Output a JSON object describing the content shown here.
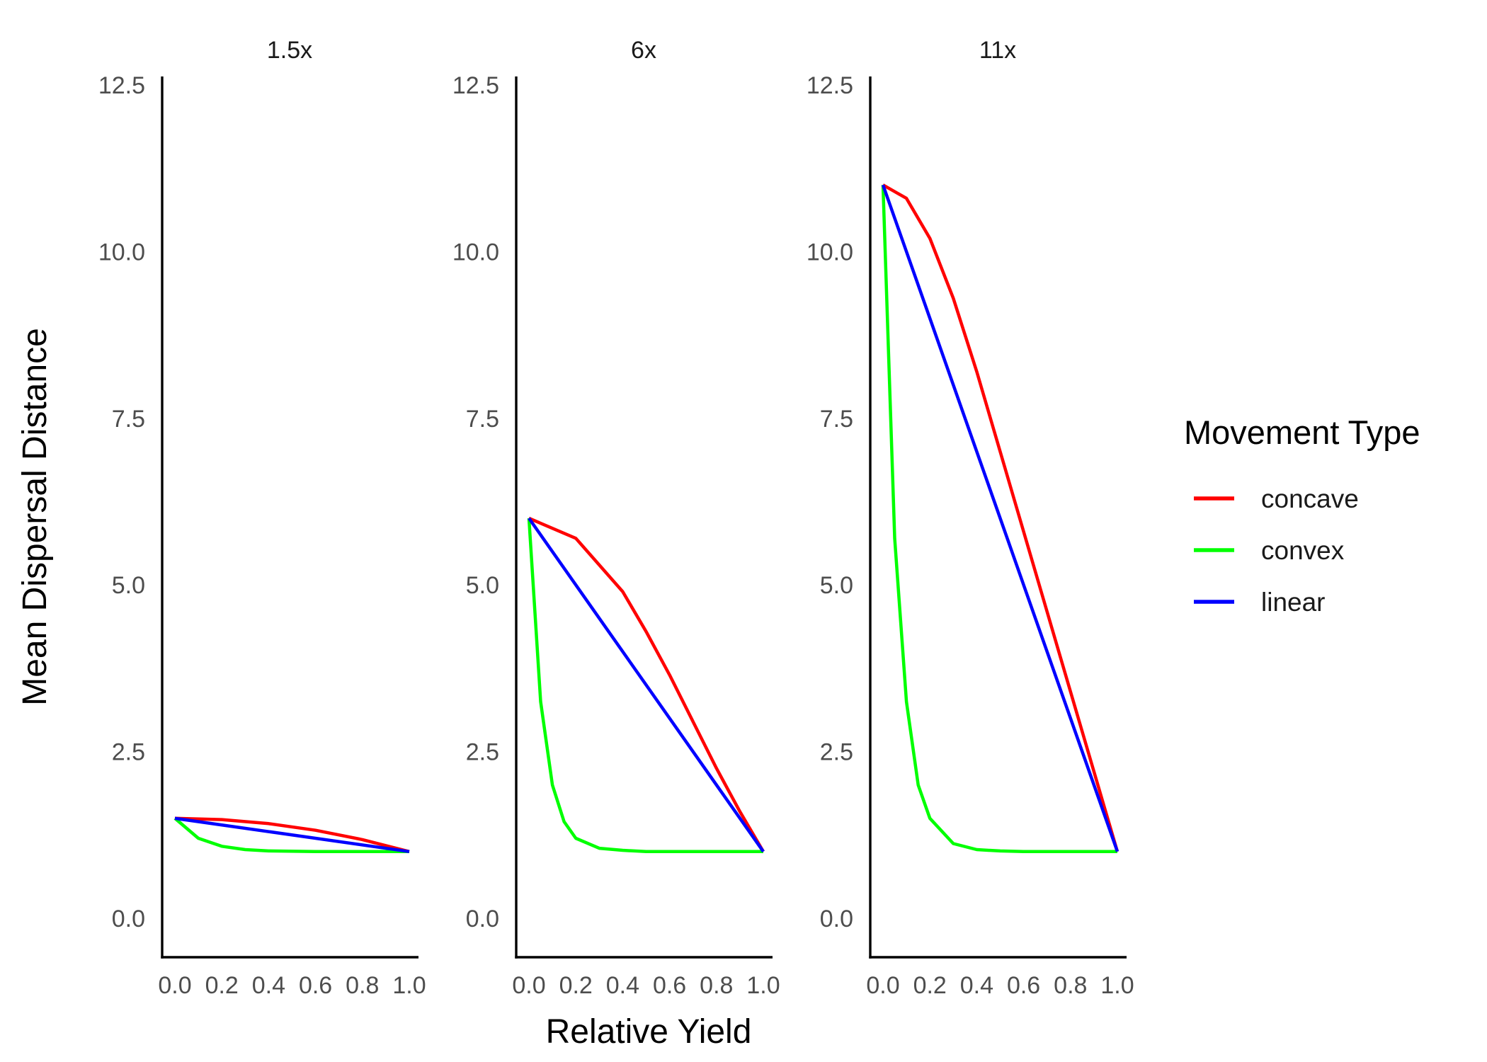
{
  "chart_data": {
    "type": "line",
    "xlabel": "Relative Yield",
    "ylabel": "Mean Dispersal Distance",
    "xlim": [
      0.0,
      1.0
    ],
    "ylim": [
      0.0,
      12.5
    ],
    "x_tick_labels": [
      "0.0",
      "0.2",
      "0.4",
      "0.6",
      "0.8",
      "1.0"
    ],
    "y_tick_labels": [
      "0.0",
      "2.5",
      "5.0",
      "7.5",
      "10.0",
      "12.5"
    ],
    "grid": false,
    "legend": {
      "title": "Movement Type",
      "placement": "right",
      "entries": [
        "concave",
        "convex",
        "linear"
      ]
    },
    "series_colors": {
      "concave": "#ff0000",
      "convex": "#00ff00",
      "linear": "#0000ff"
    },
    "facets": [
      {
        "title": "1.5x",
        "series": [
          {
            "name": "concave",
            "x": [
              0.0,
              0.2,
              0.4,
              0.6,
              0.8,
              1.0
            ],
            "y": [
              1.5,
              1.48,
              1.42,
              1.32,
              1.18,
              1.0
            ]
          },
          {
            "name": "convex",
            "x": [
              0.0,
              0.1,
              0.2,
              0.3,
              0.4,
              0.6,
              0.8,
              1.0
            ],
            "y": [
              1.5,
              1.2,
              1.08,
              1.03,
              1.01,
              1.0,
              1.0,
              1.0
            ]
          },
          {
            "name": "linear",
            "x": [
              0.0,
              1.0
            ],
            "y": [
              1.5,
              1.0
            ]
          }
        ]
      },
      {
        "title": "6x",
        "series": [
          {
            "name": "concave",
            "x": [
              0.0,
              0.2,
              0.4,
              0.5,
              0.6,
              0.7,
              0.8,
              0.9,
              1.0
            ],
            "y": [
              6.0,
              5.7,
              4.9,
              4.3,
              3.65,
              2.95,
              2.25,
              1.6,
              1.0
            ]
          },
          {
            "name": "convex",
            "x": [
              0.0,
              0.05,
              0.1,
              0.15,
              0.2,
              0.3,
              0.4,
              0.5,
              0.6,
              0.8,
              1.0
            ],
            "y": [
              6.0,
              3.25,
              2.0,
              1.45,
              1.2,
              1.05,
              1.02,
              1.0,
              1.0,
              1.0,
              1.0
            ]
          },
          {
            "name": "linear",
            "x": [
              0.0,
              1.0
            ],
            "y": [
              6.0,
              1.0
            ]
          }
        ]
      },
      {
        "title": "11x",
        "series": [
          {
            "name": "concave",
            "x": [
              0.0,
              0.1,
              0.2,
              0.3,
              0.4,
              0.5,
              0.6,
              0.7,
              0.8,
              0.9,
              1.0
            ],
            "y": [
              11.0,
              10.8,
              10.2,
              9.3,
              8.2,
              7.0,
              5.8,
              4.6,
              3.4,
              2.2,
              1.0
            ]
          },
          {
            "name": "convex",
            "x": [
              0.0,
              0.05,
              0.1,
              0.15,
              0.2,
              0.3,
              0.4,
              0.5,
              0.6,
              0.8,
              1.0
            ],
            "y": [
              11.0,
              5.7,
              3.25,
              2.0,
              1.5,
              1.12,
              1.03,
              1.01,
              1.0,
              1.0,
              1.0
            ]
          },
          {
            "name": "linear",
            "x": [
              0.0,
              1.0
            ],
            "y": [
              11.0,
              1.0
            ]
          }
        ]
      }
    ]
  }
}
